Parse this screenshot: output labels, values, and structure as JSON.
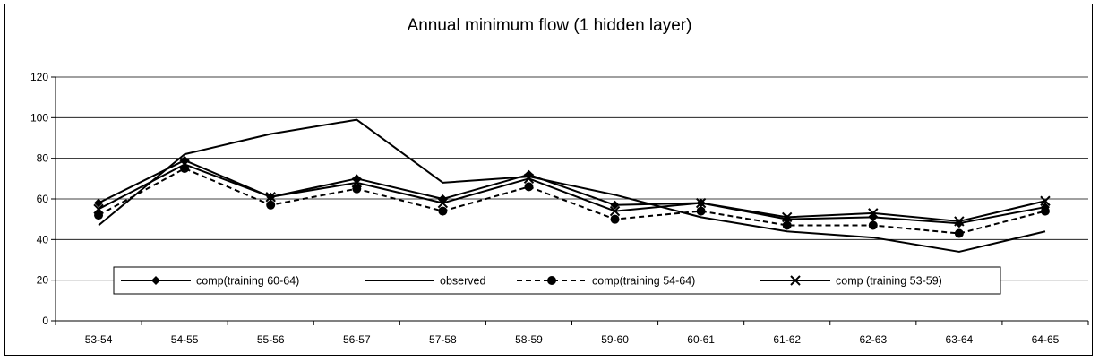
{
  "chart_data": {
    "type": "line",
    "title": "Annual minimum flow (1 hidden layer)",
    "xlabel": "",
    "ylabel": "",
    "ylim": [
      0,
      120
    ],
    "yticks": [
      "0",
      "20",
      "40",
      "60",
      "80",
      "100",
      "120"
    ],
    "grid": true,
    "legend_position": "bottom-center",
    "categories": [
      "53-54",
      "54-55",
      "55-56",
      "56-57",
      "57-58",
      "58-59",
      "59-60",
      "60-61",
      "61-62",
      "62-63",
      "63-64",
      "64-65"
    ],
    "series": [
      {
        "name": "comp(training 60-64)",
        "style": "solid",
        "marker": "diamond",
        "color": "#000000",
        "values": [
          58,
          79,
          61,
          70,
          60,
          72,
          57,
          58,
          50,
          51,
          48,
          56
        ]
      },
      {
        "name": "observed",
        "style": "solid",
        "marker": "none",
        "color": "#000000",
        "values": [
          47,
          82,
          92,
          99,
          68,
          71,
          62,
          51,
          44,
          41,
          34,
          44
        ]
      },
      {
        "name": "comp(training 54-64)",
        "style": "dashed",
        "marker": "circle",
        "color": "#000000",
        "values": [
          52,
          75,
          57,
          65,
          54,
          66,
          50,
          54,
          47,
          47,
          43,
          54
        ]
      },
      {
        "name": "comp (training 53-59)",
        "style": "solid",
        "marker": "x",
        "color": "#000000",
        "values": [
          55,
          77,
          61,
          68,
          58,
          70,
          54,
          58,
          51,
          53,
          49,
          59
        ]
      }
    ]
  }
}
